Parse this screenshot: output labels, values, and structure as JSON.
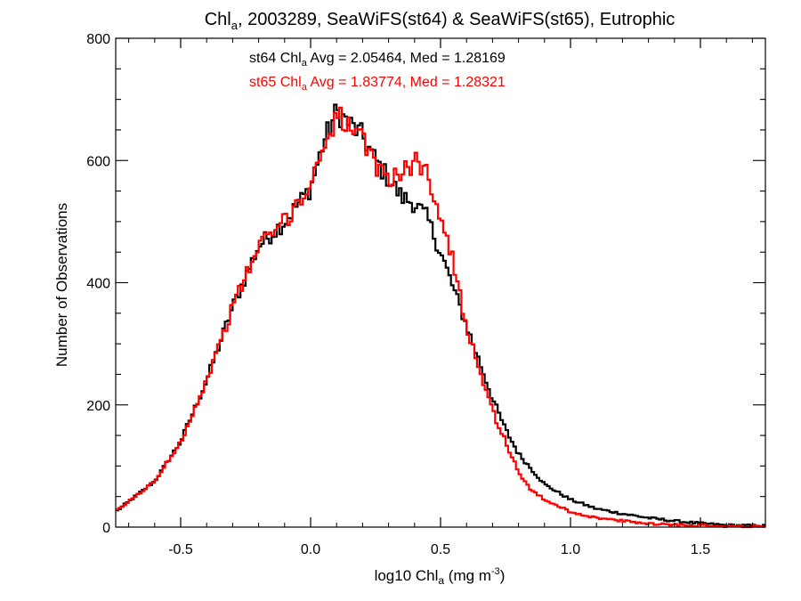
{
  "chart_data": {
    "type": "line",
    "title": {
      "prefix": "Chl",
      "sub": "a",
      "rest": ", 2003289, SeaWiFS(st64) & SeaWiFS(st65), Eutrophic"
    },
    "xlabel": {
      "prefix": "log10 Chl",
      "sub": "a",
      "mid": " (mg m",
      "sup": "-3",
      "suffix": ")"
    },
    "ylabel": "Number of Observations",
    "xlim": [
      -0.75,
      1.75
    ],
    "ylim": [
      0,
      800
    ],
    "xticks": [
      -0.5,
      0.0,
      0.5,
      1.0,
      1.5
    ],
    "xtick_labels": [
      "-0.5",
      "0.0",
      "0.5",
      "1.0",
      "1.5"
    ],
    "yticks": [
      0,
      200,
      400,
      600,
      800
    ],
    "ytick_labels": [
      "0",
      "200",
      "400",
      "600",
      "800"
    ],
    "grid": false,
    "step": "histogram",
    "x_knots": [
      -0.75,
      -0.6,
      -0.5,
      -0.4,
      -0.3,
      -0.2,
      -0.1,
      0.0,
      0.05,
      0.1,
      0.15,
      0.2,
      0.25,
      0.3,
      0.35,
      0.4,
      0.45,
      0.5,
      0.55,
      0.6,
      0.65,
      0.7,
      0.75,
      0.8,
      0.85,
      0.9,
      1.0,
      1.1,
      1.2,
      1.3,
      1.4,
      1.5,
      1.6,
      1.75
    ],
    "series": [
      {
        "color": "#000000",
        "y_knots": [
          25,
          75,
          140,
          240,
          360,
          460,
          500,
          555,
          630,
          680,
          660,
          640,
          600,
          570,
          540,
          530,
          505,
          450,
          390,
          330,
          270,
          210,
          160,
          120,
          95,
          70,
          45,
          30,
          22,
          15,
          10,
          6,
          3,
          2
        ],
        "annotation": {
          "prefix": "st64 Chl",
          "sub": "a",
          "rest": " Avg = 2.05464, Med = 1.28169"
        }
      },
      {
        "color": "#ff0000",
        "y_knots": [
          25,
          75,
          140,
          240,
          360,
          460,
          500,
          560,
          625,
          675,
          655,
          630,
          590,
          575,
          575,
          600,
          580,
          510,
          430,
          330,
          260,
          190,
          140,
          90,
          60,
          45,
          25,
          15,
          10,
          6,
          4,
          3,
          2,
          1
        ],
        "annotation": {
          "prefix": "st65 Chl",
          "sub": "a",
          "rest": " Avg = 1.83774, Med = 1.28321"
        }
      }
    ]
  }
}
